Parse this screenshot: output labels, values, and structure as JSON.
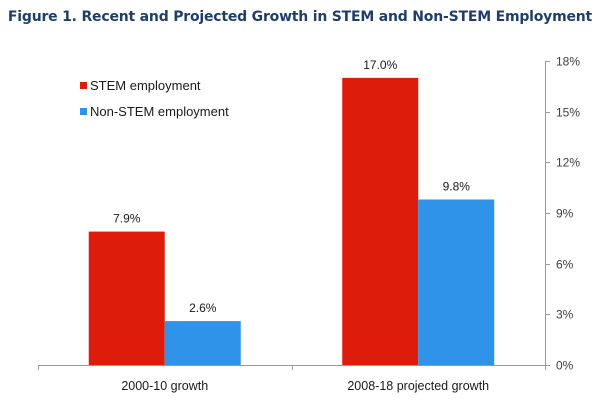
{
  "chart_data": {
    "type": "bar",
    "title": "Figure 1. Recent and Projected Growth in STEM and Non-STEM Employment",
    "categories": [
      "2000-10 growth",
      "2008-18 projected growth"
    ],
    "series": [
      {
        "name": "STEM employment",
        "values": [
          7.9,
          17.0
        ],
        "labels": [
          "7.9%",
          "17.0%"
        ],
        "color": "#dd1c0c"
      },
      {
        "name": "Non-STEM employment",
        "values": [
          2.6,
          9.8
        ],
        "labels": [
          "2.6%",
          "9.8%"
        ],
        "color": "#2e93e9"
      }
    ],
    "xlabel": "",
    "ylabel": "",
    "ylim": [
      0,
      18
    ],
    "y_axis_side": "right",
    "yticks": [
      0,
      3,
      6,
      9,
      12,
      15,
      18
    ],
    "ytick_labels": [
      "0%",
      "3%",
      "6%",
      "9%",
      "12%",
      "15%",
      "18%"
    ],
    "grid": false,
    "legend_position": "top-left"
  }
}
